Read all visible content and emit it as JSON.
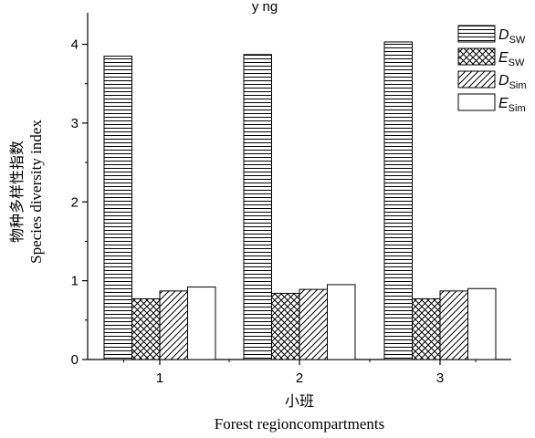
{
  "chart_data": {
    "type": "bar",
    "top_text": "y ng",
    "categories": [
      "1",
      "2",
      "3"
    ],
    "series": [
      {
        "name_main": "D",
        "name_sub": "SW",
        "values": [
          3.85,
          3.87,
          4.03
        ],
        "pattern": "hlines"
      },
      {
        "name_main": "E",
        "name_sub": "SW",
        "values": [
          0.77,
          0.84,
          0.77
        ],
        "pattern": "crosshatch"
      },
      {
        "name_main": "D",
        "name_sub": "Sim",
        "values": [
          0.87,
          0.89,
          0.87
        ],
        "pattern": "diag"
      },
      {
        "name_main": "E",
        "name_sub": "Sim",
        "values": [
          0.92,
          0.95,
          0.9
        ],
        "pattern": "none"
      }
    ],
    "ylim": [
      0,
      4.4
    ],
    "yticks": [
      "0",
      "1",
      "2",
      "3",
      "4"
    ],
    "ytick_values": [
      0,
      1,
      2,
      3,
      4
    ],
    "ylabel_cn": "物种多样性指数",
    "ylabel_en": "Species diversity index",
    "xlabel_cn": "小班",
    "xlabel_en": "Forest regioncompartments",
    "legend_position": "top-right",
    "grid": false
  }
}
